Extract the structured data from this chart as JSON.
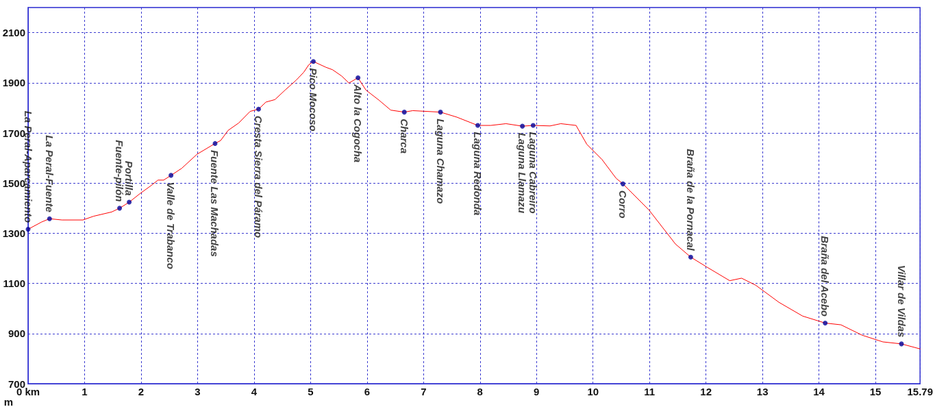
{
  "chart_data": {
    "type": "line",
    "ylabel": "m",
    "xlim": [
      0,
      15.79
    ],
    "ylim": [
      700,
      2200
    ],
    "xticks": [
      {
        "value": 0,
        "label": "0 km"
      },
      1,
      2,
      3,
      4,
      5,
      6,
      7,
      8,
      9,
      10,
      11,
      12,
      13,
      14,
      15,
      15.79
    ],
    "yticks": [
      700,
      900,
      1100,
      1300,
      1500,
      1700,
      1900,
      2100
    ],
    "grid": true,
    "line_style": "solid",
    "series": [
      {
        "color": "#ff0000",
        "marker": "none",
        "x": [
          0,
          0.24,
          0.38,
          0.6,
          0.97,
          1.16,
          1.48,
          1.62,
          1.79,
          1.98,
          2.17,
          2.3,
          2.4,
          2.53,
          2.72,
          2.99,
          3.31,
          3.41,
          3.54,
          3.73,
          3.93,
          4.08,
          4.21,
          4.37,
          4.55,
          4.74,
          4.88,
          4.97,
          5.05,
          5.27,
          5.39,
          5.55,
          5.68,
          5.84,
          5.98,
          6.21,
          6.42,
          6.66,
          6.81,
          7.13,
          7.3,
          7.59,
          7.96,
          8.19,
          8.46,
          8.75,
          8.94,
          9.24,
          9.43,
          9.7,
          9.89,
          10.16,
          10.41,
          10.53,
          10.99,
          11.46,
          11.73,
          12.01,
          12.42,
          12.63,
          12.88,
          13.29,
          13.71,
          14.11,
          14.39,
          14.76,
          15.13,
          15.46,
          15.79
        ],
        "values": [
          1316,
          1345,
          1358,
          1353,
          1353,
          1368,
          1385,
          1400,
          1424,
          1458,
          1489,
          1512,
          1512,
          1531,
          1559,
          1615,
          1658,
          1670,
          1710,
          1740,
          1786,
          1795,
          1823,
          1833,
          1871,
          1909,
          1942,
          1972,
          1985,
          1962,
          1952,
          1927,
          1899,
          1920,
          1871,
          1831,
          1791,
          1783,
          1789,
          1785,
          1783,
          1763,
          1730,
          1730,
          1737,
          1727,
          1730,
          1728,
          1737,
          1730,
          1655,
          1594,
          1519,
          1497,
          1393,
          1257,
          1205,
          1166,
          1111,
          1121,
          1093,
          1025,
          970,
          942,
          935,
          894,
          867,
          859,
          839
        ]
      },
      {
        "type": "scatter",
        "color": "#000099",
        "marker": "circle",
        "x": [
          0,
          0.38,
          1.62,
          1.79,
          2.53,
          3.31,
          4.08,
          5.05,
          5.84,
          6.66,
          7.3,
          7.96,
          8.75,
          8.94,
          10.53,
          11.73,
          14.11,
          15.46
        ],
        "values": [
          1316,
          1358,
          1400,
          1424,
          1531,
          1658,
          1795,
          1985,
          1920,
          1783,
          1783,
          1730,
          1727,
          1730,
          1497,
          1205,
          942,
          859
        ],
        "value_labels": [
          "La Peral-Aparcamiento",
          "La Peral-Fuente",
          "Fuente-pilón",
          "Portilla",
          "Valle de Trabanco",
          "Fuente Las Machadas",
          "Cresta Sierra del Páramo",
          "Pico Mocoso",
          "Alto la Cogocha",
          "Charca",
          "Laguna Chamazo",
          "Laguna Redonda",
          "Laguna Llamazu",
          "Laguna Cabreiro",
          "Corro",
          "Braña de la Pornacal",
          "Braña del Acebo",
          "Villar de Vildas"
        ]
      }
    ]
  }
}
